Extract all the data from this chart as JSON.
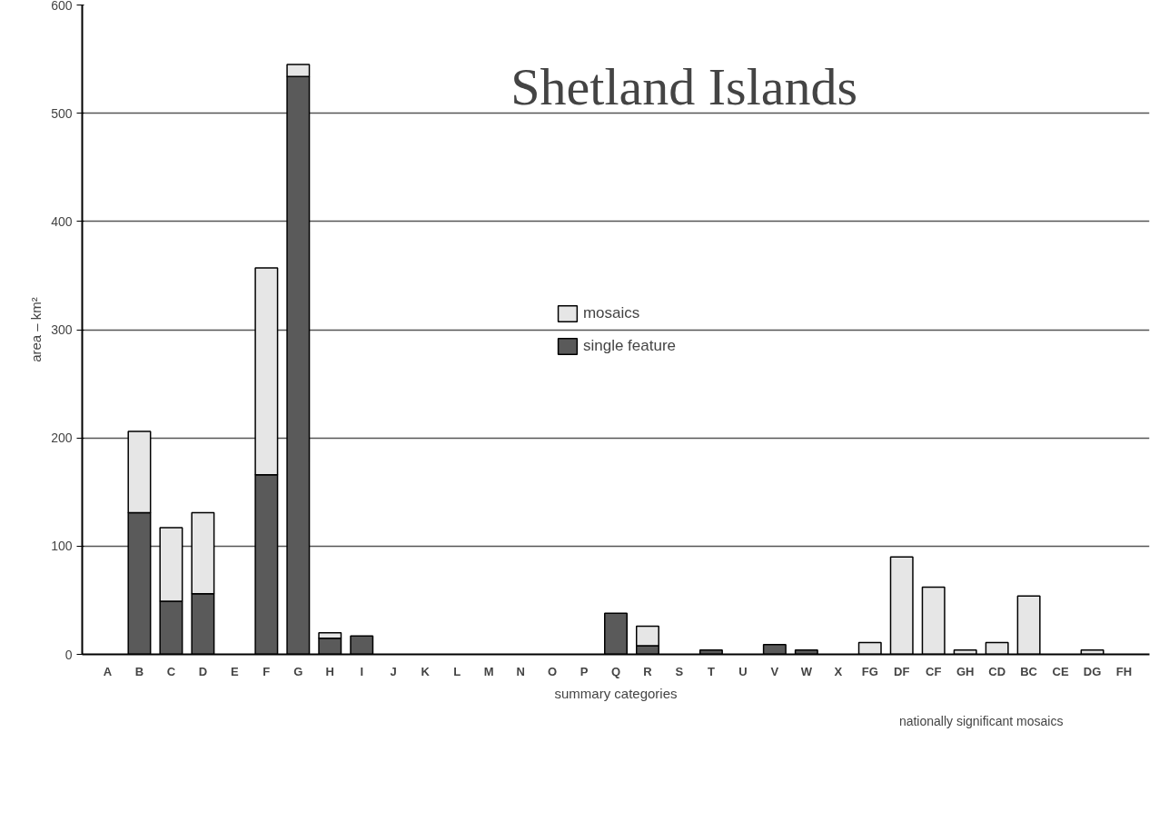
{
  "chart_data": {
    "type": "bar",
    "title": "Shetland Islands",
    "xlabel": "summary categories",
    "ylabel": "area – km²",
    "categories": [
      "A",
      "B",
      "C",
      "D",
      "E",
      "F",
      "G",
      "H",
      "I",
      "J",
      "K",
      "L",
      "M",
      "N",
      "O",
      "P",
      "Q",
      "R",
      "S",
      "T",
      "U",
      "V",
      "W",
      "X",
      "FG",
      "DF",
      "CF",
      "GH",
      "CD",
      "BC",
      "CE",
      "DG",
      "FH"
    ],
    "stacked": true,
    "series": [
      {
        "name": "single feature",
        "color": "#5a5a5a",
        "values": [
          null,
          131,
          49,
          56,
          null,
          166,
          534,
          15,
          17,
          null,
          null,
          null,
          null,
          null,
          null,
          null,
          38,
          8,
          null,
          4,
          null,
          9,
          4,
          null,
          null,
          null,
          null,
          null,
          null,
          null,
          null,
          null,
          null
        ]
      },
      {
        "name": "mosaics",
        "color": "#e6e6e6",
        "values": [
          null,
          75,
          68,
          75,
          null,
          191,
          11,
          5,
          null,
          null,
          null,
          null,
          null,
          null,
          null,
          null,
          null,
          18,
          null,
          null,
          null,
          null,
          null,
          null,
          11,
          90,
          62,
          4,
          11,
          54,
          null,
          4,
          null
        ]
      }
    ],
    "ylim": [
      0,
      600
    ],
    "yticks": [
      0,
      100,
      200,
      300,
      400,
      500,
      600
    ],
    "grid": "y",
    "legend": "center",
    "annotations": [
      "nationally significant mosaics"
    ]
  }
}
